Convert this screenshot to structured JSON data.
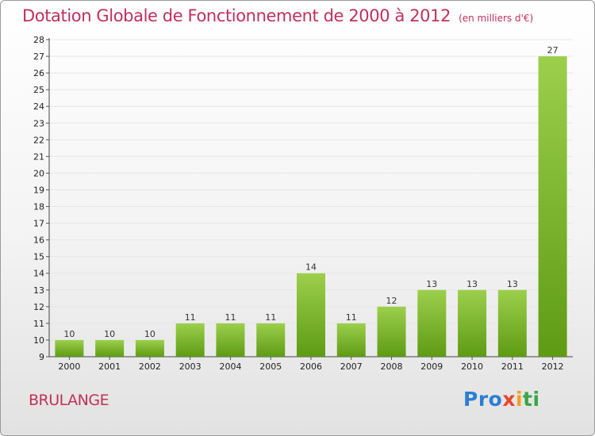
{
  "header": {
    "title": "Dotation Globale de Fonctionnement de 2000 à 2012",
    "unit": "(en milliers d'€)"
  },
  "footer": {
    "place": "BRULANGE",
    "logo": [
      "Pro",
      "x",
      "i",
      "ti"
    ]
  },
  "colors": {
    "title": "#c0305a",
    "bar_light": "#9ccf4c",
    "bar_dark": "#5e9b14",
    "grid": "#e6e6e6"
  },
  "chart_data": {
    "type": "bar",
    "title": "Dotation Globale de Fonctionnement de 2000 à 2012",
    "subtitle": "(en milliers d'€)",
    "xlabel": "",
    "ylabel": "",
    "categories": [
      "2000",
      "2001",
      "2002",
      "2003",
      "2004",
      "2005",
      "2006",
      "2007",
      "2008",
      "2009",
      "2010",
      "2011",
      "2012"
    ],
    "values": [
      10,
      10,
      10,
      11,
      11,
      11,
      14,
      11,
      12,
      13,
      13,
      13,
      27
    ],
    "ylim": [
      9,
      28
    ],
    "yticks": [
      9,
      10,
      11,
      12,
      13,
      14,
      15,
      16,
      17,
      18,
      19,
      20,
      21,
      22,
      23,
      24,
      25,
      26,
      27,
      28
    ],
    "grid": true,
    "legend": "none"
  }
}
